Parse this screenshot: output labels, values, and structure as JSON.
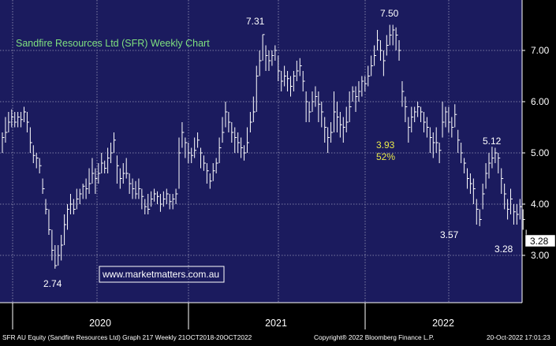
{
  "title": "Sandfire Resources Ltd (SFR) Weekly Chart",
  "website": "www.marketmatters.com.au",
  "colors": {
    "background": "#1b1b5e",
    "grid": "#9a9ab8",
    "bars": "#ffffff",
    "title": "#7fe07f",
    "annotation_yellow": "#e8e84a",
    "last_price_box": "#ffffff",
    "footer_bg": "#000000",
    "footer_text": "#ffffff"
  },
  "footer": {
    "left": "SFR AU Equity (Sandfire Resources Ltd) Graph 217  Weekly 21OCT2018-20OCT2022",
    "center": "Copyright® 2022 Bloomberg Finance L.P.",
    "right": "20-Oct-2022 17:01:23"
  },
  "chart_data": {
    "type": "ohlc",
    "title": "Sandfire Resources Ltd (SFR) Weekly Chart",
    "frequency": "weekly",
    "x_range": [
      "2019-10",
      "2022-10-20"
    ],
    "x_tick_labels": [
      "2020",
      "2021",
      "2022"
    ],
    "y_range": [
      2.0,
      8.0
    ],
    "y_tick_labels": [
      "3.00",
      "4.00",
      "5.00",
      "6.00",
      "7.00"
    ],
    "grid": true,
    "last_price": "3.28",
    "annotations": [
      {
        "label": "2.74",
        "price": 2.74,
        "color": "white"
      },
      {
        "label": "7.31",
        "price": 7.31,
        "color": "white"
      },
      {
        "label": "7.50",
        "price": 7.5,
        "color": "white"
      },
      {
        "label": "3.93",
        "price": 3.93,
        "color": "yellow"
      },
      {
        "label": "52%",
        "price": 3.93,
        "color": "yellow"
      },
      {
        "label": "3.57",
        "price": 3.57,
        "color": "white"
      },
      {
        "label": "5.12",
        "price": 5.12,
        "color": "white"
      },
      {
        "label": "3.28",
        "price": 3.28,
        "color": "white"
      }
    ],
    "series": [
      {
        "values": [
          [
            5.3,
            5.0,
            5.4
          ],
          [
            5.4,
            5.2,
            5.7
          ],
          [
            5.6,
            5.4,
            5.8
          ],
          [
            5.7,
            5.5,
            5.85
          ],
          [
            5.6,
            5.5,
            5.8
          ],
          [
            5.7,
            5.5,
            5.8
          ],
          [
            5.65,
            5.5,
            5.8
          ],
          [
            5.8,
            5.6,
            5.9
          ],
          [
            5.6,
            5.4,
            5.8
          ],
          [
            5.2,
            5.0,
            5.5
          ],
          [
            4.95,
            4.8,
            5.15
          ],
          [
            4.9,
            4.7,
            5.0
          ],
          [
            4.75,
            4.6,
            4.9
          ],
          [
            4.3,
            4.2,
            4.5
          ],
          [
            3.9,
            3.8,
            4.1
          ],
          [
            3.5,
            3.4,
            3.9
          ],
          [
            3.1,
            2.9,
            3.5
          ],
          [
            2.8,
            2.74,
            3.2
          ],
          [
            3.0,
            2.8,
            3.2
          ],
          [
            3.2,
            2.9,
            3.4
          ],
          [
            3.6,
            3.2,
            3.8
          ],
          [
            3.9,
            3.5,
            4.0
          ],
          [
            4.0,
            3.8,
            4.2
          ],
          [
            3.9,
            3.8,
            4.1
          ],
          [
            4.1,
            3.9,
            4.3
          ],
          [
            4.2,
            4.0,
            4.3
          ],
          [
            4.35,
            4.1,
            4.4
          ],
          [
            4.3,
            4.1,
            4.5
          ],
          [
            4.4,
            4.2,
            4.7
          ],
          [
            4.6,
            4.4,
            4.9
          ],
          [
            4.5,
            4.2,
            4.7
          ],
          [
            4.6,
            4.4,
            4.8
          ],
          [
            4.8,
            4.6,
            5.0
          ],
          [
            4.7,
            4.6,
            4.85
          ],
          [
            4.9,
            4.6,
            5.1
          ],
          [
            5.0,
            4.8,
            5.2
          ],
          [
            5.25,
            5.0,
            5.4
          ],
          [
            4.75,
            4.4,
            4.95
          ],
          [
            4.5,
            4.3,
            4.7
          ],
          [
            4.6,
            4.4,
            4.8
          ],
          [
            4.6,
            4.5,
            4.9
          ],
          [
            4.4,
            4.2,
            4.6
          ],
          [
            4.3,
            4.1,
            4.5
          ],
          [
            4.2,
            4.1,
            4.45
          ],
          [
            4.3,
            4.1,
            4.5
          ],
          [
            4.15,
            3.9,
            4.3
          ],
          [
            3.95,
            3.8,
            4.1
          ],
          [
            3.9,
            3.8,
            4.2
          ],
          [
            4.1,
            3.95,
            4.25
          ],
          [
            4.2,
            4.05,
            4.3
          ],
          [
            4.15,
            4.0,
            4.25
          ],
          [
            4.0,
            3.85,
            4.2
          ],
          [
            4.1,
            3.95,
            4.25
          ],
          [
            4.2,
            4.0,
            4.3
          ],
          [
            4.05,
            3.9,
            4.2
          ],
          [
            4.1,
            3.9,
            4.2
          ],
          [
            4.2,
            4.0,
            4.3
          ],
          [
            5.0,
            4.3,
            5.3
          ],
          [
            5.4,
            5.1,
            5.6
          ],
          [
            5.2,
            4.9,
            5.3
          ],
          [
            5.0,
            4.8,
            5.2
          ],
          [
            4.95,
            4.8,
            5.1
          ],
          [
            5.05,
            4.9,
            5.3
          ],
          [
            5.25,
            5.1,
            5.4
          ],
          [
            5.0,
            4.7,
            5.1
          ],
          [
            4.8,
            4.65,
            4.95
          ],
          [
            4.65,
            4.4,
            4.8
          ],
          [
            4.45,
            4.3,
            4.6
          ],
          [
            4.65,
            4.45,
            4.8
          ],
          [
            4.8,
            4.6,
            4.9
          ],
          [
            5.1,
            4.8,
            5.3
          ],
          [
            5.4,
            5.2,
            5.7
          ],
          [
            5.8,
            5.5,
            6.0
          ],
          [
            5.6,
            5.4,
            5.8
          ],
          [
            5.4,
            5.2,
            5.6
          ],
          [
            5.3,
            5.0,
            5.5
          ],
          [
            5.2,
            5.0,
            5.4
          ],
          [
            5.1,
            4.9,
            5.3
          ],
          [
            5.0,
            4.85,
            5.15
          ],
          [
            5.2,
            5.0,
            5.5
          ],
          [
            5.6,
            5.4,
            5.8
          ],
          [
            5.8,
            5.6,
            6.1
          ],
          [
            6.5,
            5.8,
            6.7
          ],
          [
            6.8,
            6.5,
            7.0
          ],
          [
            7.31,
            6.8,
            7.31
          ],
          [
            6.9,
            6.6,
            7.1
          ],
          [
            6.8,
            6.6,
            7.0
          ],
          [
            6.9,
            6.7,
            7.0
          ],
          [
            7.0,
            6.8,
            7.1
          ],
          [
            6.6,
            6.4,
            6.9
          ],
          [
            6.4,
            6.2,
            6.6
          ],
          [
            6.5,
            6.3,
            6.7
          ],
          [
            6.45,
            6.2,
            6.6
          ],
          [
            6.3,
            6.1,
            6.5
          ],
          [
            6.5,
            6.2,
            6.6
          ],
          [
            6.6,
            6.4,
            6.8
          ],
          [
            6.7,
            6.5,
            6.85
          ],
          [
            6.4,
            6.2,
            6.6
          ],
          [
            6.0,
            5.6,
            6.2
          ],
          [
            5.8,
            5.6,
            6.0
          ],
          [
            6.0,
            5.8,
            6.2
          ],
          [
            6.1,
            5.9,
            6.3
          ],
          [
            5.95,
            5.6,
            6.2
          ],
          [
            5.8,
            5.5,
            6.0
          ],
          [
            5.5,
            5.2,
            5.7
          ],
          [
            5.3,
            5.0,
            5.5
          ],
          [
            5.4,
            5.2,
            5.6
          ],
          [
            5.8,
            5.4,
            6.2
          ],
          [
            5.7,
            5.4,
            6.0
          ],
          [
            5.55,
            5.3,
            5.8
          ],
          [
            5.5,
            5.2,
            5.7
          ],
          [
            5.6,
            5.4,
            5.9
          ],
          [
            5.9,
            5.6,
            6.2
          ],
          [
            6.2,
            6.0,
            6.3
          ],
          [
            6.1,
            5.8,
            6.3
          ],
          [
            6.2,
            6.0,
            6.4
          ],
          [
            6.4,
            6.1,
            6.5
          ],
          [
            6.35,
            6.2,
            6.5
          ],
          [
            6.5,
            6.3,
            6.7
          ],
          [
            6.7,
            6.5,
            6.9
          ],
          [
            6.9,
            6.7,
            7.1
          ],
          [
            7.2,
            7.0,
            7.4
          ],
          [
            7.0,
            6.8,
            7.2
          ],
          [
            6.8,
            6.5,
            7.0
          ],
          [
            7.1,
            6.9,
            7.3
          ],
          [
            7.3,
            7.1,
            7.5
          ],
          [
            7.4,
            7.1,
            7.5
          ],
          [
            7.3,
            7.0,
            7.45
          ],
          [
            7.0,
            6.8,
            7.2
          ],
          [
            6.2,
            5.9,
            6.4
          ],
          [
            5.9,
            5.6,
            6.1
          ],
          [
            5.5,
            5.2,
            5.7
          ],
          [
            5.7,
            5.4,
            5.9
          ],
          [
            5.8,
            5.6,
            5.9
          ],
          [
            5.9,
            5.7,
            6.0
          ],
          [
            5.8,
            5.6,
            5.9
          ],
          [
            5.6,
            5.4,
            5.8
          ],
          [
            5.5,
            5.3,
            5.7
          ],
          [
            5.3,
            5.0,
            5.5
          ],
          [
            5.2,
            4.9,
            5.4
          ],
          [
            5.2,
            5.0,
            5.5
          ],
          [
            5.05,
            4.8,
            5.2
          ],
          [
            5.6,
            5.3,
            6.0
          ],
          [
            5.8,
            5.5,
            5.9
          ],
          [
            5.6,
            5.4,
            5.9
          ],
          [
            5.5,
            5.3,
            5.7
          ],
          [
            5.75,
            5.5,
            5.95
          ],
          [
            5.25,
            5.0,
            5.45
          ],
          [
            5.0,
            4.8,
            5.2
          ],
          [
            4.8,
            4.6,
            4.9
          ],
          [
            4.5,
            4.3,
            4.7
          ],
          [
            4.4,
            4.2,
            4.6
          ],
          [
            4.3,
            4.0,
            4.5
          ],
          [
            3.9,
            3.6,
            4.1
          ],
          [
            3.7,
            3.57,
            3.9
          ],
          [
            4.2,
            3.9,
            4.4
          ],
          [
            4.6,
            4.3,
            4.8
          ],
          [
            4.8,
            4.5,
            5.0
          ],
          [
            4.9,
            4.7,
            5.12
          ],
          [
            5.0,
            4.8,
            5.1
          ],
          [
            4.9,
            4.6,
            5.0
          ],
          [
            4.5,
            4.2,
            4.7
          ],
          [
            4.2,
            3.9,
            4.4
          ],
          [
            3.9,
            3.7,
            4.1
          ],
          [
            4.1,
            3.8,
            4.3
          ],
          [
            3.85,
            3.6,
            4.0
          ],
          [
            3.8,
            3.6,
            4.0
          ],
          [
            3.95,
            3.7,
            4.1
          ],
          [
            3.7,
            3.5,
            3.9
          ],
          [
            3.28,
            3.28,
            3.5
          ]
        ]
      }
    ]
  }
}
